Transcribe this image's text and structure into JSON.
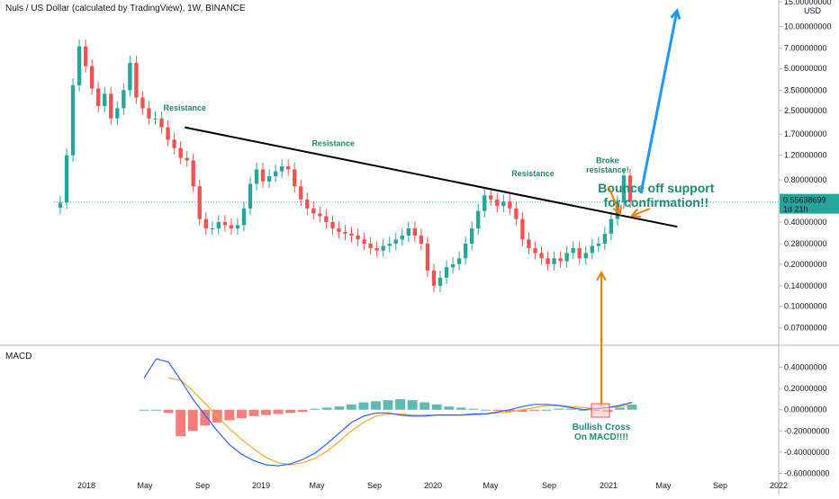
{
  "header": {
    "title": "Nuls / US Dollar (calculated by TradingView), 1W, BINANCE",
    "currency": "USD"
  },
  "colors": {
    "up": "#26a69a",
    "down": "#ef5350",
    "macd_line": "#2962ff",
    "signal_line": "#f9a825",
    "trendline": "#000000",
    "annotation_green": "#1b8a78",
    "arrow_orange": "#f57c00",
    "arrow_blue": "#2196f3",
    "price_tag": "#26a69a"
  },
  "chart_data": [
    {
      "type": "candlestick",
      "title": "Nuls / US Dollar (calculated by TradingView), 1W, BINANCE",
      "y_scale": "log",
      "ylim": [
        0.055,
        15
      ],
      "y_ticks": [
        "15.00000000",
        "10.00000000",
        "7.00000000",
        "5.00000000",
        "3.50000000",
        "2.50000000",
        "1.70000000",
        "1.20000000",
        "0.80000000",
        "0.40000000",
        "0.28000000",
        "0.20000000",
        "0.14000000",
        "0.10000000",
        "0.07000000"
      ],
      "x_ticks": [
        "2018",
        "May",
        "Sep",
        "2019",
        "May",
        "Sep",
        "2020",
        "May",
        "Sep",
        "2021",
        "May",
        "Sep",
        "2022"
      ],
      "last_price": {
        "value": "0.55638699",
        "countdown": "1d 21h"
      },
      "series_close": [
        0.55,
        1.2,
        3.8,
        7.2,
        5.2,
        3.6,
        2.7,
        3.3,
        2.2,
        2.6,
        3.5,
        5.5,
        3.1,
        2.6,
        2.2,
        2.2,
        1.9,
        1.55,
        1.35,
        1.15,
        1.1,
        0.72,
        0.42,
        0.36,
        0.36,
        0.4,
        0.38,
        0.36,
        0.38,
        0.5,
        0.75,
        0.95,
        0.78,
        0.85,
        0.92,
        1.0,
        0.95,
        0.72,
        0.58,
        0.5,
        0.46,
        0.44,
        0.4,
        0.36,
        0.34,
        0.33,
        0.32,
        0.3,
        0.28,
        0.26,
        0.25,
        0.27,
        0.28,
        0.3,
        0.32,
        0.36,
        0.32,
        0.28,
        0.18,
        0.14,
        0.16,
        0.19,
        0.2,
        0.22,
        0.28,
        0.36,
        0.48,
        0.62,
        0.58,
        0.52,
        0.56,
        0.5,
        0.42,
        0.3,
        0.26,
        0.24,
        0.22,
        0.2,
        0.22,
        0.21,
        0.24,
        0.26,
        0.22,
        0.24,
        0.27,
        0.28,
        0.33,
        0.42,
        0.55,
        0.86,
        0.56
      ],
      "annotations": [
        {
          "text": "Resistance",
          "x": "2018-07-25",
          "y": 2.5
        },
        {
          "text": "Resistance",
          "x": "2019-06-05",
          "y": 1.4
        },
        {
          "text": "Resistance",
          "x": "2020-07-29",
          "y": 0.85
        },
        {
          "text": "Broke resistance!",
          "x": "2020-12-30",
          "y": 1.05
        },
        {
          "text": "Bounce off support for confirmation!!",
          "x": "2021-04-15",
          "y": 0.65
        }
      ],
      "trendline": [
        {
          "x": "2018-07-25",
          "y": 1.9
        },
        {
          "x": "2021-05-31",
          "y": 0.37
        }
      ]
    },
    {
      "type": "macd",
      "title": "MACD",
      "ylim": [
        -0.63,
        0.6
      ],
      "y_ticks": [
        "0.40000000",
        "0.20000000",
        "0.00000000",
        "-0.20000000",
        "-0.40000000",
        "-0.60000000"
      ],
      "macd": [
        0.3,
        0.48,
        0.45,
        0.28,
        0.1,
        -0.05,
        -0.2,
        -0.33,
        -0.42,
        -0.48,
        -0.52,
        -0.53,
        -0.51,
        -0.47,
        -0.41,
        -0.32,
        -0.22,
        -0.12,
        -0.06,
        -0.03,
        -0.03,
        -0.05,
        -0.06,
        -0.06,
        -0.05,
        -0.05,
        -0.05,
        -0.04,
        -0.04,
        -0.02,
        0.0,
        0.03,
        0.05,
        0.05,
        0.04,
        0.02,
        0.0,
        0.01,
        0.02,
        0.04,
        0.07
      ],
      "signal": [
        null,
        null,
        0.3,
        0.28,
        0.18,
        0.06,
        -0.06,
        -0.18,
        -0.28,
        -0.37,
        -0.45,
        -0.5,
        -0.52,
        -0.5,
        -0.46,
        -0.39,
        -0.3,
        -0.2,
        -0.12,
        -0.06,
        -0.04,
        -0.04,
        -0.05,
        -0.05,
        -0.05,
        -0.05,
        -0.05,
        -0.05,
        -0.04,
        -0.03,
        -0.02,
        0.0,
        0.02,
        0.04,
        0.04,
        0.03,
        0.02,
        0.01,
        0.02,
        0.03,
        0.05
      ],
      "histogram": [
        0,
        0,
        -0.03,
        -0.25,
        -0.2,
        -0.15,
        -0.12,
        -0.1,
        -0.08,
        -0.06,
        -0.05,
        -0.04,
        -0.03,
        -0.02,
        0.01,
        0.02,
        0.03,
        0.05,
        0.07,
        0.08,
        0.09,
        0.1,
        0.09,
        0.07,
        0.05,
        0.03,
        0.02,
        0.01,
        0.0,
        -0.01,
        -0.02,
        -0.02,
        -0.01,
        0.0,
        0.01,
        0.01,
        0.0,
        -0.01,
        -0.02,
        0.02,
        0.05
      ],
      "annotations": [
        {
          "text": "Bullish Cross On MACD!!!!"
        }
      ]
    }
  ]
}
